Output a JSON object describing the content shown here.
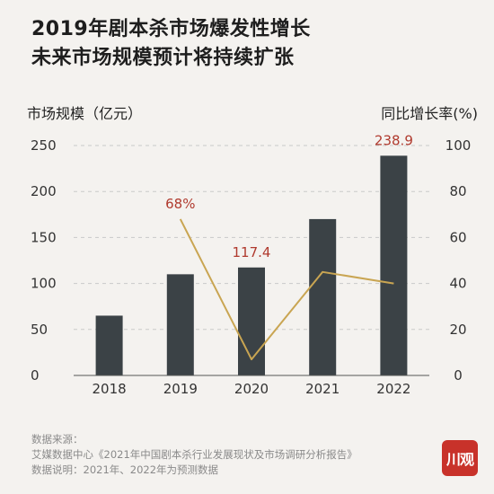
{
  "title": {
    "line1": "2019年剧本杀市场爆发性增长",
    "line2": "未来市场规模预计将持续扩张"
  },
  "axes": {
    "left_title": "市场规模（亿元）",
    "right_title": "同比增长率(%)"
  },
  "chart_data": {
    "type": "bar",
    "categories": [
      "2018",
      "2019",
      "2020",
      "2021",
      "2022"
    ],
    "series": [
      {
        "type": "bar",
        "axis": "left",
        "values": [
          65,
          110,
          117.4,
          170,
          238.9
        ],
        "color": "#3b4246"
      },
      {
        "type": "line",
        "axis": "right",
        "values": [
          null,
          68,
          7,
          45,
          40
        ],
        "color": "#c9a552"
      }
    ],
    "data_labels": [
      {
        "series": 1,
        "index": 1,
        "text": "68%"
      },
      {
        "series": 0,
        "index": 2,
        "text": "117.4"
      },
      {
        "series": 0,
        "index": 4,
        "text": "238.9"
      }
    ],
    "y_left": {
      "min": 0,
      "max": 250,
      "ticks": [
        0,
        50,
        100,
        150,
        200,
        250
      ]
    },
    "y_right": {
      "min": 0,
      "max": 100,
      "ticks": [
        0,
        20,
        40,
        60,
        80,
        100
      ]
    },
    "grid": true,
    "label_color": "#b03a2e"
  },
  "source": {
    "label": "数据来源：",
    "text": "艾媒数据中心《2021年中国剧本杀行业发展现状及市场调研分析报告》",
    "note": "数据说明：2021年、2022年为预测数据"
  },
  "logo": {
    "text": "川观",
    "color": "#c8322a"
  }
}
